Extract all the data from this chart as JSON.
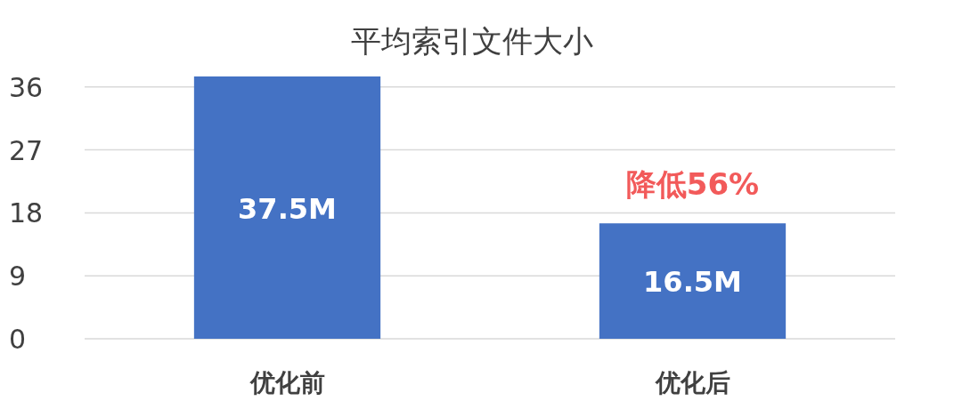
{
  "chart_data": {
    "type": "bar",
    "title": "平均索引文件大小",
    "categories": [
      "优化前",
      "优化后"
    ],
    "values": [
      37.5,
      16.5
    ],
    "value_labels": [
      "37.5M",
      "16.5M"
    ],
    "color": "#4472c4",
    "ylim": [
      0,
      37.5
    ],
    "yticks": [
      0,
      9,
      18,
      27,
      36
    ],
    "grid": "y",
    "annotations": [
      "降低56%"
    ]
  }
}
